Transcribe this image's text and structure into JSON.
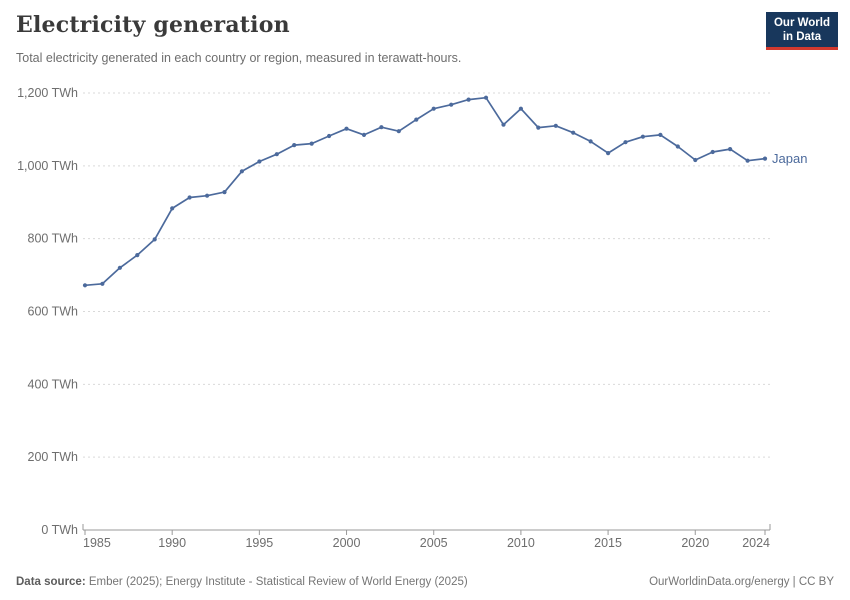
{
  "header": {
    "title": "Electricity generation",
    "subtitle": "Total electricity generated in each country or region, measured in terawatt-hours.",
    "logo": {
      "line1": "Our World",
      "line2": "in Data"
    }
  },
  "footer": {
    "source_label": "Data source:",
    "source_text": "Ember (2025); Energy Institute - Statistical Review of World Energy (2025)",
    "right_text": "OurWorldinData.org/energy | CC BY"
  },
  "colors": {
    "line": "#4C6A9C",
    "grid": "#d9d9d9",
    "axis": "#999999",
    "tick_label": "#6e6e6e",
    "logo_bg": "#18375c",
    "logo_red": "#d2392e",
    "title_text": "#3a3a3a",
    "subtitle_text": "#6e6e6e",
    "footer_text": "#757575"
  },
  "chart_data": {
    "type": "line",
    "title": "Electricity generation",
    "subtitle": "Total electricity generated in each country or region, measured in terawatt-hours.",
    "xlabel": "",
    "ylabel": "",
    "unit": "TWh",
    "xlim": [
      1985,
      2024
    ],
    "ylim": [
      0,
      1200
    ],
    "grid": "horizontal-dashed",
    "legend": "end-of-line-label",
    "x_ticks": [
      1985,
      1990,
      1995,
      2000,
      2005,
      2010,
      2015,
      2020,
      2024
    ],
    "y_ticks": [
      {
        "value": 0,
        "label": "0 TWh"
      },
      {
        "value": 200,
        "label": "200 TWh"
      },
      {
        "value": 400,
        "label": "400 TWh"
      },
      {
        "value": 600,
        "label": "600 TWh"
      },
      {
        "value": 800,
        "label": "800 TWh"
      },
      {
        "value": 1000,
        "label": "1,000 TWh"
      },
      {
        "value": 1200,
        "label": "1,200 TWh"
      }
    ],
    "x": [
      1985,
      1986,
      1987,
      1988,
      1989,
      1990,
      1991,
      1992,
      1993,
      1994,
      1995,
      1996,
      1997,
      1998,
      1999,
      2000,
      2001,
      2002,
      2003,
      2004,
      2005,
      2006,
      2007,
      2008,
      2009,
      2010,
      2011,
      2012,
      2013,
      2014,
      2015,
      2016,
      2017,
      2018,
      2019,
      2020,
      2021,
      2022,
      2023,
      2024
    ],
    "series": [
      {
        "name": "Japan",
        "color": "#4C6A9C",
        "values": [
          672,
          676,
          720,
          755,
          798,
          883,
          913,
          918,
          928,
          985,
          1012,
          1032,
          1057,
          1061,
          1082,
          1102,
          1085,
          1106,
          1095,
          1127,
          1157,
          1168,
          1182,
          1187,
          1113,
          1157,
          1105,
          1110,
          1091,
          1067,
          1035,
          1065,
          1080,
          1085,
          1053,
          1016,
          1038,
          1046,
          1014,
          1020
        ]
      }
    ]
  }
}
